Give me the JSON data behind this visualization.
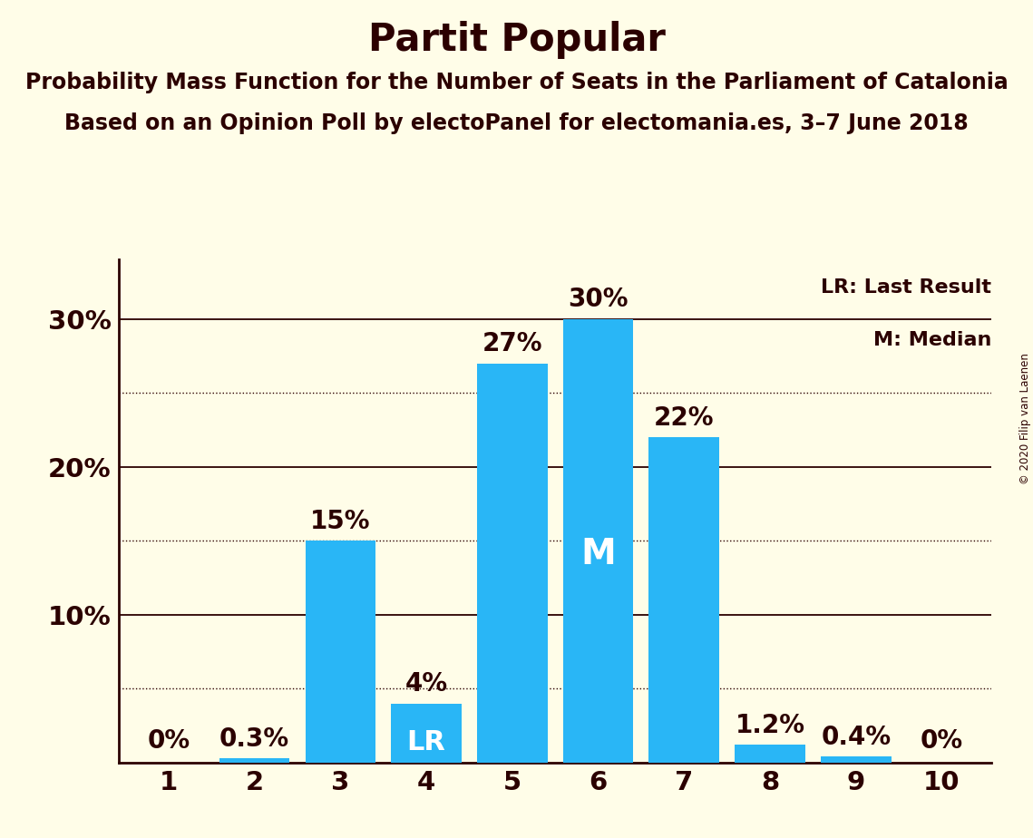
{
  "title": "Partit Popular",
  "subtitle1": "Probability Mass Function for the Number of Seats in the Parliament of Catalonia",
  "subtitle2": "Based on an Opinion Poll by electoPanel for electomania.es, 3–7 June 2018",
  "copyright": "© 2020 Filip van Laenen",
  "categories": [
    1,
    2,
    3,
    4,
    5,
    6,
    7,
    8,
    9,
    10
  ],
  "values": [
    0.0,
    0.3,
    15.0,
    4.0,
    27.0,
    30.0,
    22.0,
    1.2,
    0.4,
    0.0
  ],
  "labels": [
    "0%",
    "0.3%",
    "15%",
    "4%",
    "27%",
    "30%",
    "22%",
    "1.2%",
    "0.4%",
    "0%"
  ],
  "bar_color": "#29b6f6",
  "background_color": "#fffde8",
  "text_color": "#2b0000",
  "lr_bar": 4,
  "median_bar": 6,
  "lr_label": "LR",
  "median_label": "M",
  "legend_lr": "LR: Last Result",
  "legend_m": "M: Median",
  "yticks": [
    10,
    20,
    30
  ],
  "ydotted": [
    5,
    15,
    25
  ],
  "ylim": [
    0,
    34
  ],
  "title_fontsize": 30,
  "subtitle_fontsize": 17,
  "tick_fontsize": 21,
  "bar_label_fontsize": 20,
  "legend_fontsize": 16,
  "inner_label_fontsize": 22
}
